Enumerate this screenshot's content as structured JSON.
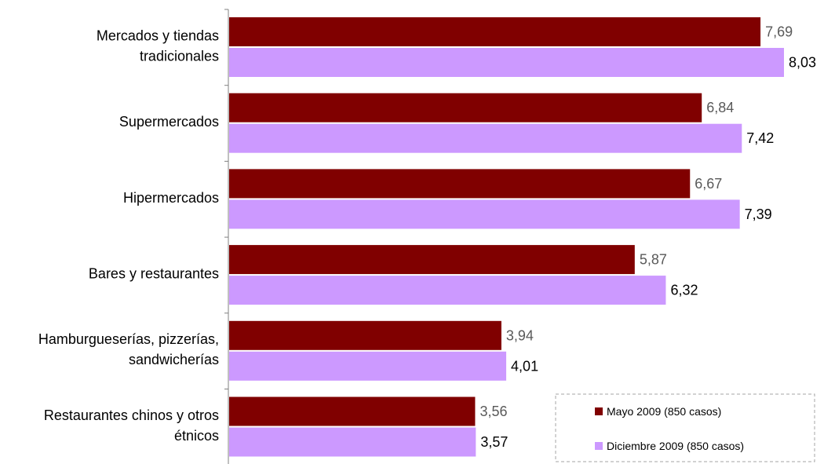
{
  "chart_data": {
    "type": "bar",
    "orientation": "horizontal",
    "categories": [
      [
        "Mercados y tiendas",
        "tradicionales"
      ],
      [
        "Supermercados"
      ],
      [
        "Hipermercados"
      ],
      [
        "Bares y restaurantes"
      ],
      [
        "Hamburgueserías, pizzerías,",
        "sandwicherías"
      ],
      [
        "Restaurantes chinos y otros",
        "étnicos"
      ]
    ],
    "series": [
      {
        "name": "Mayo 2009 (850 casos)",
        "color": "#800000",
        "label_color": "#595959",
        "values": [
          7.69,
          6.84,
          6.67,
          5.87,
          3.94,
          3.56
        ],
        "labels": [
          "7,69",
          "6,84",
          "6,67",
          "5,87",
          "3,94",
          "3,56"
        ]
      },
      {
        "name": "Diciembre 2009 (850 casos)",
        "color": "#CC99FF",
        "label_color": "#000000",
        "values": [
          8.03,
          7.42,
          7.39,
          6.32,
          4.01,
          3.57
        ],
        "labels": [
          "8,03",
          "7,42",
          "7,39",
          "6,32",
          "4,01",
          "3,57"
        ]
      }
    ],
    "xlim": [
      0,
      8.03
    ],
    "axis_visible": false,
    "grid": false,
    "legend_position": "bottom-right",
    "title": "",
    "xlabel": "",
    "ylabel": ""
  }
}
